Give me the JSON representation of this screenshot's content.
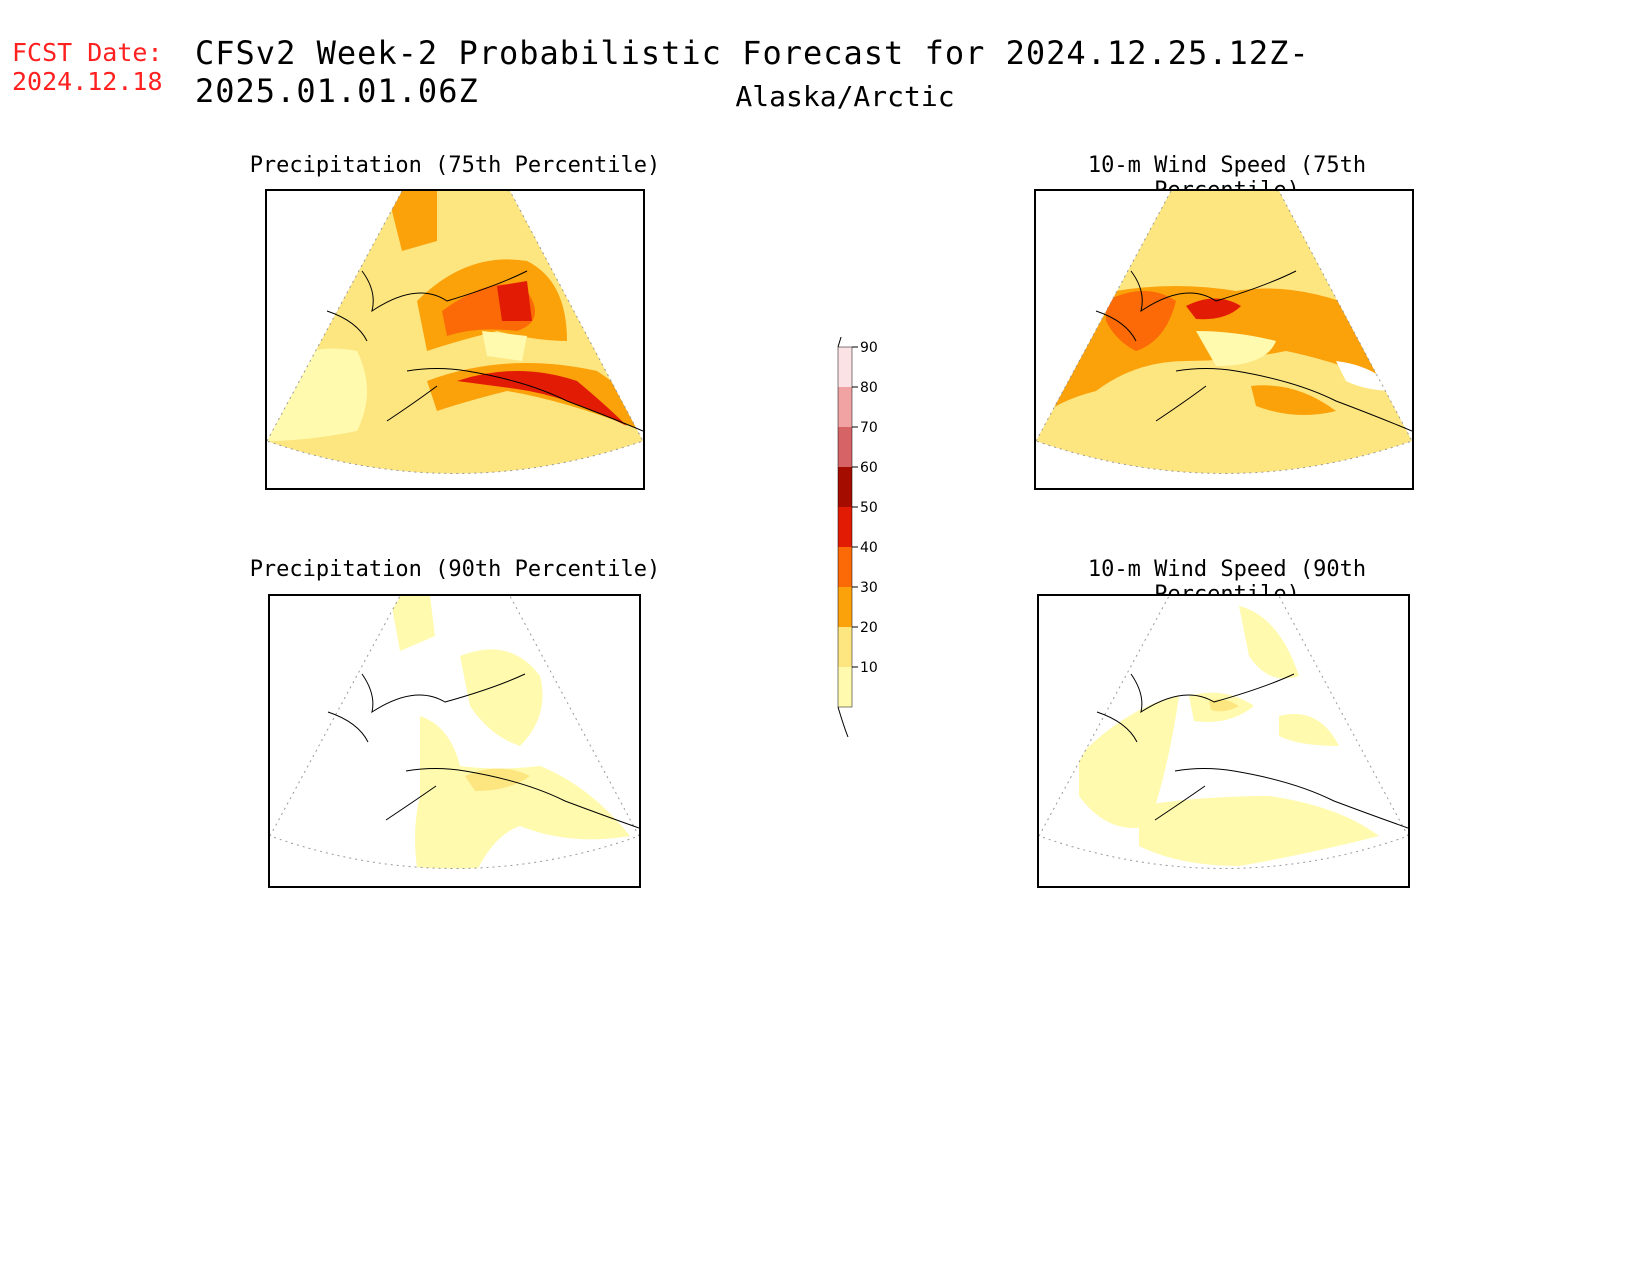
{
  "header": {
    "fcst_label": "FCST Date:",
    "fcst_date": "2024.12.18",
    "title": "CFSv2 Week-2 Probabilistic Forecast for 2024.12.25.12Z-2025.01.01.06Z",
    "subtitle": "Alaska/Arctic"
  },
  "panels": [
    {
      "id": "precip75",
      "title": "Precipitation (75th Percentile)"
    },
    {
      "id": "wind75",
      "title": "10-m Wind Speed (75th Percentile)"
    },
    {
      "id": "precip90",
      "title": "Precipitation (90th Percentile)"
    },
    {
      "id": "wind90",
      "title": "10-m Wind Speed (90th Percentile)"
    }
  ],
  "colorbar": {
    "levels": [
      "10",
      "20",
      "30",
      "40",
      "50",
      "60",
      "70",
      "80",
      "90"
    ],
    "colors": [
      "#fffaae",
      "#fde580",
      "#fba10a",
      "#fb6a06",
      "#e21c04",
      "#a50c00",
      "#d66466",
      "#f1a3a4",
      "#fbe2e5"
    ]
  }
}
